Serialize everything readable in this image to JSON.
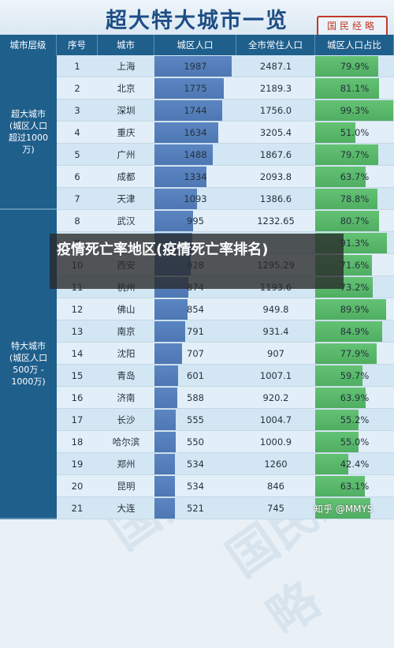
{
  "title": "超大特大城市一览",
  "stamp": "国民经略",
  "overlay": "疫情死亡率地区(疫情死亡率排名)",
  "watermark_logo": "知乎 @MMYS",
  "watermark_text": "国民经略",
  "colors": {
    "header_blue": "#1f5f8c",
    "population_bar": "#5b86c2",
    "percent_bar": "#63c274",
    "row_light": "#d3e6f3",
    "row_lighter": "#e3eff8"
  },
  "headers": [
    "城市层级",
    "序号",
    "城市",
    "城区人口",
    "全市常住人口",
    "城区人口占比"
  ],
  "groups": [
    {
      "label": "超大城市\n(城区人口\n超过1000\n万)",
      "rows": 7
    },
    {
      "label": "特大城市\n(城区人口\n500万 -\n1000万)",
      "rows": 14
    }
  ],
  "chart_data": {
    "type": "table",
    "title": "超大特大城市一览",
    "columns": [
      "城市层级",
      "序号",
      "城市",
      "城区人口",
      "全市常住人口",
      "城区人口占比"
    ],
    "rows": [
      {
        "n": "1",
        "city": "上海",
        "urban": 1987,
        "urban_label": "1987",
        "total": "2487.1",
        "pct": 79.9,
        "pct_label": "79.9%"
      },
      {
        "n": "2",
        "city": "北京",
        "urban": 1775,
        "urban_label": "1775",
        "total": "2189.3",
        "pct": 81.1,
        "pct_label": "81.1%"
      },
      {
        "n": "3",
        "city": "深圳",
        "urban": 1744,
        "urban_label": "1744",
        "total": "1756.0",
        "pct": 99.3,
        "pct_label": "99.3%"
      },
      {
        "n": "4",
        "city": "重庆",
        "urban": 1634,
        "urban_label": "1634",
        "total": "3205.4",
        "pct": 51.0,
        "pct_label": "51.0%"
      },
      {
        "n": "5",
        "city": "广州",
        "urban": 1488,
        "urban_label": "1488",
        "total": "1867.6",
        "pct": 79.7,
        "pct_label": "79.7%"
      },
      {
        "n": "6",
        "city": "成都",
        "urban": 1334,
        "urban_label": "1334",
        "total": "2093.8",
        "pct": 63.7,
        "pct_label": "63.7%"
      },
      {
        "n": "7",
        "city": "天津",
        "urban": 1093,
        "urban_label": "1093",
        "total": "1386.6",
        "pct": 78.8,
        "pct_label": "78.8%"
      },
      {
        "n": "8",
        "city": "武汉",
        "urban": 995,
        "urban_label": "995",
        "total": "1232.65",
        "pct": 80.7,
        "pct_label": "80.7%"
      },
      {
        "n": "9",
        "city": "",
        "urban": 975,
        "urban_label": "",
        "total": "",
        "pct": 91.3,
        "pct_label": "91.3%"
      },
      {
        "n": "10",
        "city": "西安",
        "urban": 928,
        "urban_label": "928",
        "total": "1295.29",
        "pct": 71.6,
        "pct_label": "71.6%"
      },
      {
        "n": "11",
        "city": "杭州",
        "urban": 874,
        "urban_label": "874",
        "total": "1193.6",
        "pct": 73.2,
        "pct_label": "73.2%"
      },
      {
        "n": "12",
        "city": "佛山",
        "urban": 854,
        "urban_label": "854",
        "total": "949.8",
        "pct": 89.9,
        "pct_label": "89.9%"
      },
      {
        "n": "13",
        "city": "南京",
        "urban": 791,
        "urban_label": "791",
        "total": "931.4",
        "pct": 84.9,
        "pct_label": "84.9%"
      },
      {
        "n": "14",
        "city": "沈阳",
        "urban": 707,
        "urban_label": "707",
        "total": "907",
        "pct": 77.9,
        "pct_label": "77.9%"
      },
      {
        "n": "15",
        "city": "青岛",
        "urban": 601,
        "urban_label": "601",
        "total": "1007.1",
        "pct": 59.7,
        "pct_label": "59.7%"
      },
      {
        "n": "16",
        "city": "济南",
        "urban": 588,
        "urban_label": "588",
        "total": "920.2",
        "pct": 63.9,
        "pct_label": "63.9%"
      },
      {
        "n": "17",
        "city": "长沙",
        "urban": 555,
        "urban_label": "555",
        "total": "1004.7",
        "pct": 55.2,
        "pct_label": "55.2%"
      },
      {
        "n": "18",
        "city": "哈尔滨",
        "urban": 550,
        "urban_label": "550",
        "total": "1000.9",
        "pct": 55.0,
        "pct_label": "55.0%"
      },
      {
        "n": "19",
        "city": "郑州",
        "urban": 534,
        "urban_label": "534",
        "total": "1260",
        "pct": 42.4,
        "pct_label": "42.4%"
      },
      {
        "n": "20",
        "city": "昆明",
        "urban": 534,
        "urban_label": "534",
        "total": "846",
        "pct": 63.1,
        "pct_label": "63.1%"
      },
      {
        "n": "21",
        "city": "大连",
        "urban": 521,
        "urban_label": "521",
        "total": "745",
        "pct": 69.9,
        "pct_label": ""
      }
    ]
  }
}
